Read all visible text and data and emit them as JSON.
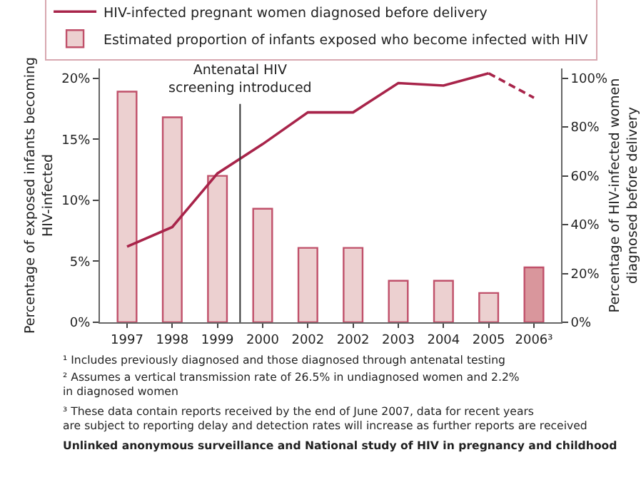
{
  "chart_data": {
    "type": "bar",
    "categories": [
      "1997",
      "1998",
      "1999",
      "2000",
      "2002",
      "2002",
      "2003",
      "2004",
      "2005",
      "2006³"
    ],
    "series": [
      {
        "name": "Estimated proportion of infants exposed who become infected with HIV",
        "color": "#ecd0d0",
        "colors": [
          "#ecd0d0",
          "#ecd0d0",
          "#ecd0d0",
          "#ecd0d0",
          "#ecd0d0",
          "#ecd0d0",
          "#ecd0d0",
          "#ecd0d0",
          "#ecd0d0",
          "#d9969c"
        ],
        "values": [
          18.9,
          16.8,
          12,
          9.3,
          6.1,
          6.1,
          3.4,
          3.4,
          2.4,
          4.5
        ]
      },
      {
        "name": "HIV-infected pregnant women diagnosed before delivery",
        "type": "line",
        "axis": "y2",
        "color": "#a8244a",
        "line_style": "solid",
        "values": [
          31,
          39,
          61,
          73,
          86,
          86,
          98,
          97,
          102,
          null
        ]
      },
      {
        "type": "line",
        "axis": "y2",
        "color": "#a8244a",
        "line_style": "dashed",
        "values": [
          null,
          null,
          null,
          null,
          null,
          null,
          null,
          null,
          102,
          92
        ]
      }
    ],
    "ylabel": "Percentage of exposed infants becoming\nHIV-infected",
    "y2label": "Percentage of HIV-infected women\ndiagnosed before delivery",
    "ylim": [
      0,
      20.8
    ],
    "yticks": [
      {
        "value": 0,
        "label": "0%"
      },
      {
        "value": 5,
        "label": "5%"
      },
      {
        "value": 10,
        "label": "10%"
      },
      {
        "value": 15,
        "label": "15%"
      },
      {
        "value": 20,
        "label": "20%"
      }
    ],
    "y2lim": [
      0,
      104
    ],
    "y2ticks": [
      {
        "value": 0,
        "label": "0%"
      },
      {
        "value": 20,
        "label": "20%"
      },
      {
        "value": 40,
        "label": "40%"
      },
      {
        "value": 60,
        "label": "60%"
      },
      {
        "value": 80,
        "label": "80%"
      },
      {
        "value": 100,
        "label": "100%"
      }
    ],
    "legend": "top",
    "marker": "none",
    "annotations": [
      "Antenatal HIV\nscreening introduced",
      "¹ Includes previously diagnosed and those diagnosed through antenatal testing",
      "² Assumes a vertical transmission rate of 26.5% in undiagnosed women and 2.2%\nin diagnosed women",
      "³ These data contain reports received by the end of June 2007, data for recent years\nare subject to reporting delay and detection rates will increase as further reports are received",
      "Unlinked anonymous surveillance and National study of HIV in pregnancy and childhood"
    ]
  }
}
